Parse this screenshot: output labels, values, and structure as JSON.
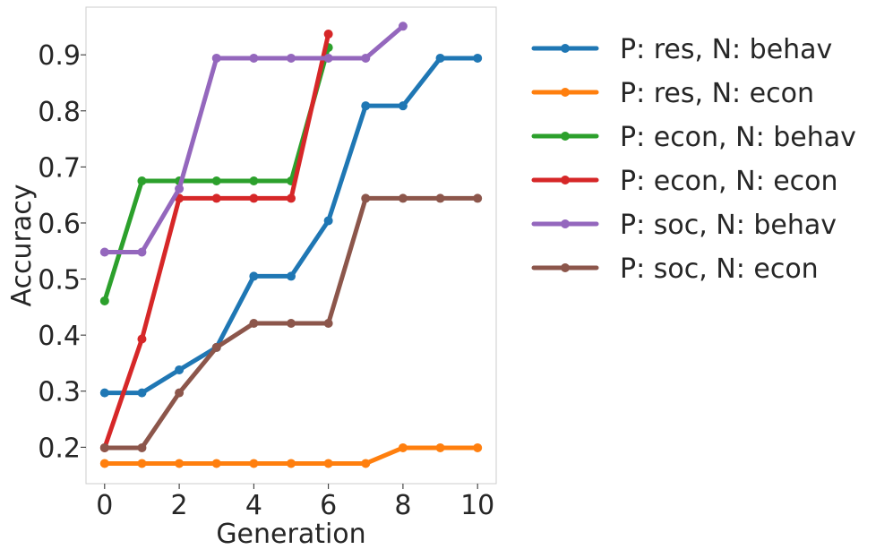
{
  "chart_data": {
    "type": "line",
    "title": "",
    "xlabel": "Generation",
    "ylabel": "Accuracy",
    "xlim": [
      -0.5,
      10.5
    ],
    "ylim": [
      0.135,
      0.985
    ],
    "xticks": [
      0,
      2,
      4,
      6,
      8,
      10
    ],
    "yticks": [
      0.2,
      0.3,
      0.4,
      0.5,
      0.6,
      0.7,
      0.8,
      0.9
    ],
    "xtick_labels": [
      "0",
      "2",
      "4",
      "6",
      "8",
      "10"
    ],
    "ytick_labels": [
      "0.2",
      "0.3",
      "0.4",
      "0.5",
      "0.6",
      "0.7",
      "0.8",
      "0.9"
    ],
    "grid": false,
    "legend_position": "outside-right-top",
    "series": [
      {
        "name": "P: res, N: behav",
        "color": "#1f77b4",
        "x": [
          0,
          1,
          2,
          3,
          4,
          5,
          6,
          7,
          8,
          9,
          10
        ],
        "y": [
          0.297,
          0.297,
          0.338,
          0.378,
          0.505,
          0.505,
          0.604,
          0.809,
          0.809,
          0.894,
          0.894
        ]
      },
      {
        "name": "P: res, N: econ",
        "color": "#ff7f0e",
        "x": [
          0,
          1,
          2,
          3,
          4,
          5,
          6,
          7,
          8,
          9,
          10
        ],
        "y": [
          0.171,
          0.171,
          0.171,
          0.171,
          0.171,
          0.171,
          0.171,
          0.171,
          0.199,
          0.199,
          0.199
        ]
      },
      {
        "name": "P: econ, N: behav",
        "color": "#2ca02c",
        "x": [
          0,
          1,
          2,
          3,
          4,
          5,
          6
        ],
        "y": [
          0.461,
          0.675,
          0.675,
          0.675,
          0.675,
          0.675,
          0.913
        ]
      },
      {
        "name": "P: econ, N: econ",
        "color": "#d62728",
        "x": [
          0,
          1,
          2,
          3,
          4,
          5,
          6
        ],
        "y": [
          0.199,
          0.393,
          0.644,
          0.644,
          0.644,
          0.644,
          0.937
        ]
      },
      {
        "name": "P: soc, N: behav",
        "color": "#9467bd",
        "x": [
          0,
          1,
          2,
          3,
          4,
          5,
          6,
          7,
          8
        ],
        "y": [
          0.548,
          0.548,
          0.661,
          0.894,
          0.894,
          0.894,
          0.894,
          0.894,
          0.951
        ]
      },
      {
        "name": "P: soc, N: econ",
        "color": "#8c564b",
        "x": [
          0,
          1,
          2,
          3,
          4,
          5,
          6,
          7,
          8,
          9,
          10
        ],
        "y": [
          0.199,
          0.199,
          0.297,
          0.378,
          0.421,
          0.421,
          0.421,
          0.644,
          0.644,
          0.644,
          0.644
        ]
      }
    ]
  }
}
